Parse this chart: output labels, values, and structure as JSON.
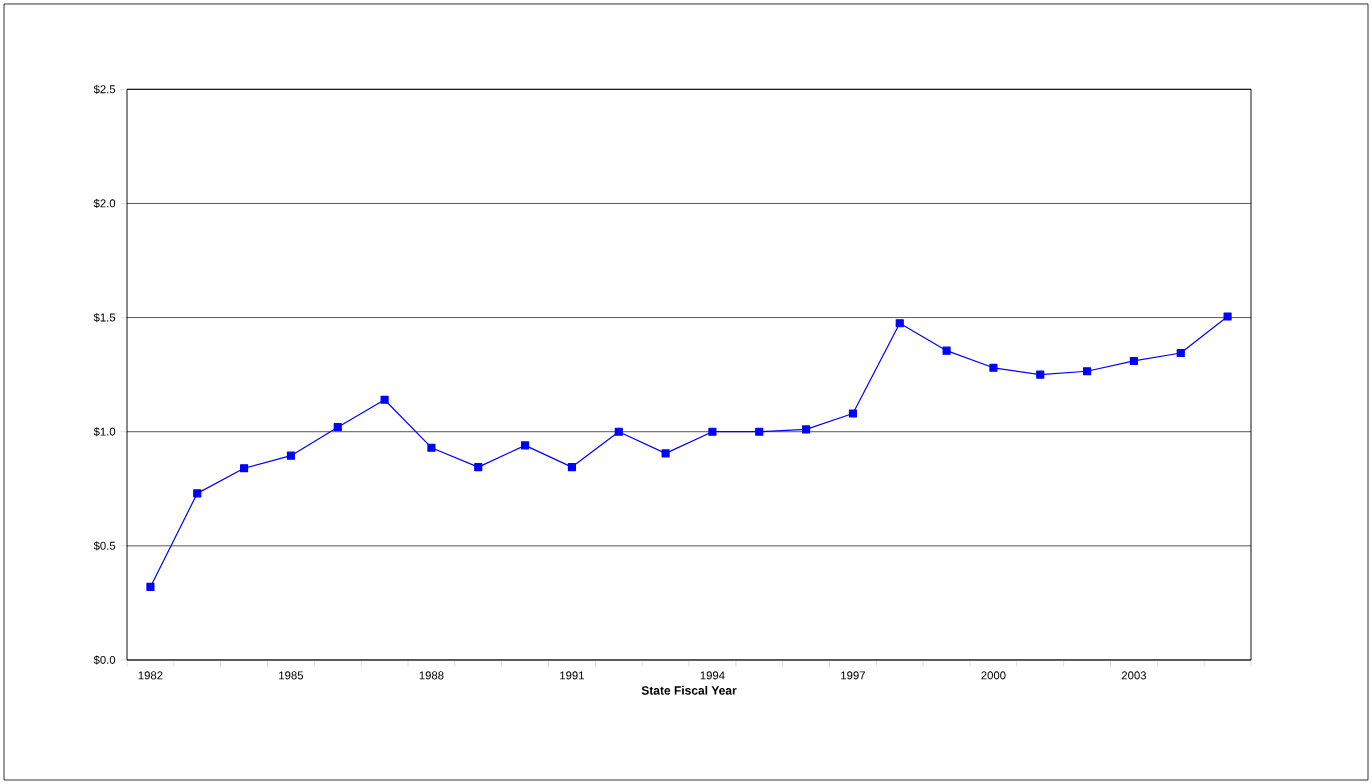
{
  "chart_data": {
    "type": "line",
    "xlabel": "State Fiscal Year",
    "categories": [
      "1982",
      null,
      null,
      "1985",
      null,
      null,
      "1988",
      null,
      null,
      "1991",
      null,
      null,
      "1994",
      null,
      null,
      "1997",
      null,
      null,
      "2000",
      null,
      null,
      "2003",
      null,
      null
    ],
    "series": [
      {
        "color": "#0000ff",
        "values": [
          0.32,
          0.73,
          0.84,
          0.895,
          1.02,
          1.14,
          0.93,
          0.845,
          0.94,
          0.845,
          1.0,
          0.905,
          1.0,
          1.0,
          1.01,
          1.08,
          1.475,
          1.355,
          1.28,
          1.25,
          1.265,
          1.31,
          1.345,
          1.505
        ]
      }
    ],
    "ylim": [
      0,
      2.5
    ],
    "yticks": [
      {
        "value": 0,
        "label": "$0.0"
      },
      {
        "value": 0.5,
        "label": "$0.5"
      },
      {
        "value": 1.0,
        "label": "$1.0"
      },
      {
        "value": 1.5,
        "label": "$1.5"
      },
      {
        "value": 2.0,
        "label": "$2.0"
      },
      {
        "value": 2.5,
        "label": "$2.5"
      }
    ],
    "grid": "y",
    "marker": "square",
    "line_style": "solid"
  }
}
